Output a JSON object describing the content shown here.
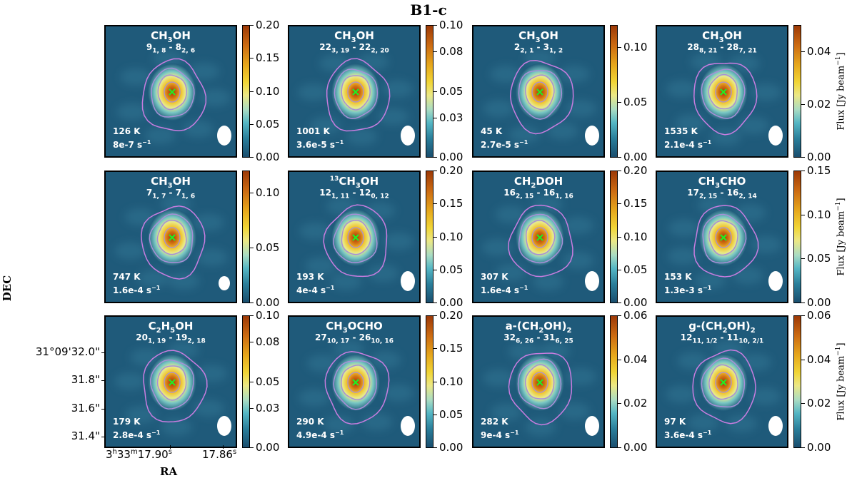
{
  "title": "B1-c",
  "axes": {
    "ylabel": "DEC",
    "xlabel": "RA",
    "yticks": [
      "31°09'32.0\"",
      "31.8\"",
      "31.6\"",
      "31.4\""
    ],
    "xticks": [
      {
        "h": "3",
        "m": "33",
        "s": "17.90",
        "su": "s"
      },
      {
        "h": "",
        "m": "",
        "s": "17.86",
        "su": "s"
      }
    ],
    "flux_label": "Flux [Jy beam",
    "flux_exp": "−1",
    "flux_unit_close": "]"
  },
  "colors": {
    "map_bg": "#1f5a7a",
    "contour_outer": "#c97de0",
    "contour_inner": "#a88fd8",
    "marker": "#22ee22",
    "beam": "#ffffff"
  },
  "panels": [
    {
      "mol_html": "CH<sub>3</sub>OH",
      "trans_html": "9<sub>1, 8</sub> - 8<sub>2, 6</sub>",
      "eup": "126 K",
      "aij": "8e-7 s",
      "aij_exp": "−1",
      "cbar_ticks": [
        "0.20",
        "0.15",
        "0.10",
        "0.05",
        "0.00"
      ],
      "cbar_pos": [
        0,
        0.25,
        0.5,
        0.75,
        1
      ],
      "flux_label_shown": false,
      "beam_size": "large",
      "peak": 0.2
    },
    {
      "mol_html": "CH<sub>3</sub>OH",
      "trans_html": "22<sub>3, 19</sub> - 22<sub>2, 20</sub>",
      "eup": "1001 K",
      "aij": "3.6e-5 s",
      "aij_exp": "−1",
      "cbar_ticks": [
        "0.10",
        "0.08",
        "0.05",
        "0.03",
        "0.00"
      ],
      "cbar_pos": [
        0,
        0.2,
        0.5,
        0.7,
        1
      ],
      "flux_label_shown": false,
      "beam_size": "large",
      "peak": 0.1
    },
    {
      "mol_html": "CH<sub>3</sub>OH",
      "trans_html": "2<sub>2, 1</sub> - 3<sub>1, 2</sub>",
      "eup": "45 K",
      "aij": "2.7e-5 s",
      "aij_exp": "−1",
      "cbar_ticks": [
        "0.10",
        "0.05",
        "0.00"
      ],
      "cbar_pos": [
        0.17,
        0.585,
        1
      ],
      "flux_label_shown": false,
      "beam_size": "large",
      "peak": 0.12
    },
    {
      "mol_html": "CH<sub>3</sub>OH",
      "trans_html": "28<sub>8, 21</sub> - 28<sub>7, 21</sub>",
      "eup": "1535 K",
      "aij": "2.1e-4 s",
      "aij_exp": "−1",
      "cbar_ticks": [
        "0.04",
        "0.02",
        "0.00"
      ],
      "cbar_pos": [
        0.2,
        0.6,
        1
      ],
      "flux_label_shown": true,
      "beam_size": "large",
      "peak": 0.05
    },
    {
      "mol_html": "CH<sub>3</sub>OH",
      "trans_html": "7<sub>1, 7</sub> - 7<sub>1, 6</sub>",
      "eup": "747 K",
      "aij": "1.6e-4 s",
      "aij_exp": "−1",
      "cbar_ticks": [
        "0.10",
        "0.05",
        "0.00"
      ],
      "cbar_pos": [
        0.17,
        0.585,
        1
      ],
      "flux_label_shown": false,
      "beam_size": "small",
      "peak": 0.12
    },
    {
      "mol_html": "<sup>13</sup>CH<sub>3</sub>OH",
      "trans_html": "12<sub>1, 11</sub> - 12<sub>0, 12</sub>",
      "eup": "193 K",
      "aij": "4e-4 s",
      "aij_exp": "−1",
      "cbar_ticks": [
        "0.20",
        "0.15",
        "0.10",
        "0.05",
        "0.00"
      ],
      "cbar_pos": [
        0,
        0.25,
        0.5,
        0.75,
        1
      ],
      "flux_label_shown": false,
      "beam_size": "large",
      "peak": 0.2
    },
    {
      "mol_html": "CH<sub>2</sub>DOH",
      "trans_html": "16<sub>2, 15</sub> - 16<sub>1, 16</sub>",
      "eup": "307 K",
      "aij": "1.6e-4 s",
      "aij_exp": "−1",
      "cbar_ticks": [
        "0.20",
        "0.15",
        "0.10",
        "0.05",
        "0.00"
      ],
      "cbar_pos": [
        0,
        0.25,
        0.5,
        0.75,
        1
      ],
      "flux_label_shown": false,
      "beam_size": "large",
      "peak": 0.2
    },
    {
      "mol_html": "CH<sub>3</sub>CHO",
      "trans_html": "17<sub>2, 15</sub> - 16<sub>2, 14</sub>",
      "eup": "153 K",
      "aij": "1.3e-3 s",
      "aij_exp": "−1",
      "cbar_ticks": [
        "0.15",
        "0.10",
        "0.05",
        "0.00"
      ],
      "cbar_pos": [
        0,
        0.333,
        0.667,
        1
      ],
      "flux_label_shown": true,
      "beam_size": "large",
      "peak": 0.15
    },
    {
      "mol_html": "C<sub>2</sub>H<sub>5</sub>OH",
      "trans_html": "20<sub>1, 19</sub> - 19<sub>2, 18</sub>",
      "eup": "179 K",
      "aij": "2.8e-4 s",
      "aij_exp": "−1",
      "cbar_ticks": [
        "0.10",
        "0.08",
        "0.05",
        "0.03",
        "0.00"
      ],
      "cbar_pos": [
        0,
        0.2,
        0.5,
        0.7,
        1
      ],
      "flux_label_shown": false,
      "beam_size": "large",
      "peak": 0.1
    },
    {
      "mol_html": "CH<sub>3</sub>OCHO",
      "trans_html": "27<sub>10, 17</sub> - 26<sub>10, 16</sub>",
      "eup": "290 K",
      "aij": "4.9e-4 s",
      "aij_exp": "−1",
      "cbar_ticks": [
        "0.20",
        "0.15",
        "0.10",
        "0.05",
        "0.00"
      ],
      "cbar_pos": [
        0,
        0.25,
        0.5,
        0.75,
        1
      ],
      "flux_label_shown": false,
      "beam_size": "large",
      "peak": 0.2
    },
    {
      "mol_html": "a-(CH<sub>2</sub>OH)<sub>2</sub>",
      "trans_html": "32<sub>6, 26</sub> - 31<sub>6, 25</sub>",
      "eup": "282 K",
      "aij": "9e-4 s",
      "aij_exp": "−1",
      "cbar_ticks": [
        "0.06",
        "0.04",
        "0.02",
        "0.00"
      ],
      "cbar_pos": [
        0,
        0.333,
        0.667,
        1
      ],
      "flux_label_shown": false,
      "beam_size": "large",
      "peak": 0.06
    },
    {
      "mol_html": "g-(CH<sub>2</sub>OH)<sub>2</sub>",
      "trans_html": "12<sub>11, 1/2</sub> - 11<sub>10, 2/1</sub>",
      "eup": "97 K",
      "aij": "3.6e-4 s",
      "aij_exp": "−1",
      "cbar_ticks": [
        "0.06",
        "0.04",
        "0.02",
        "0.00"
      ],
      "cbar_pos": [
        0,
        0.333,
        0.667,
        1
      ],
      "flux_label_shown": true,
      "beam_size": "large",
      "peak": 0.06
    }
  ]
}
